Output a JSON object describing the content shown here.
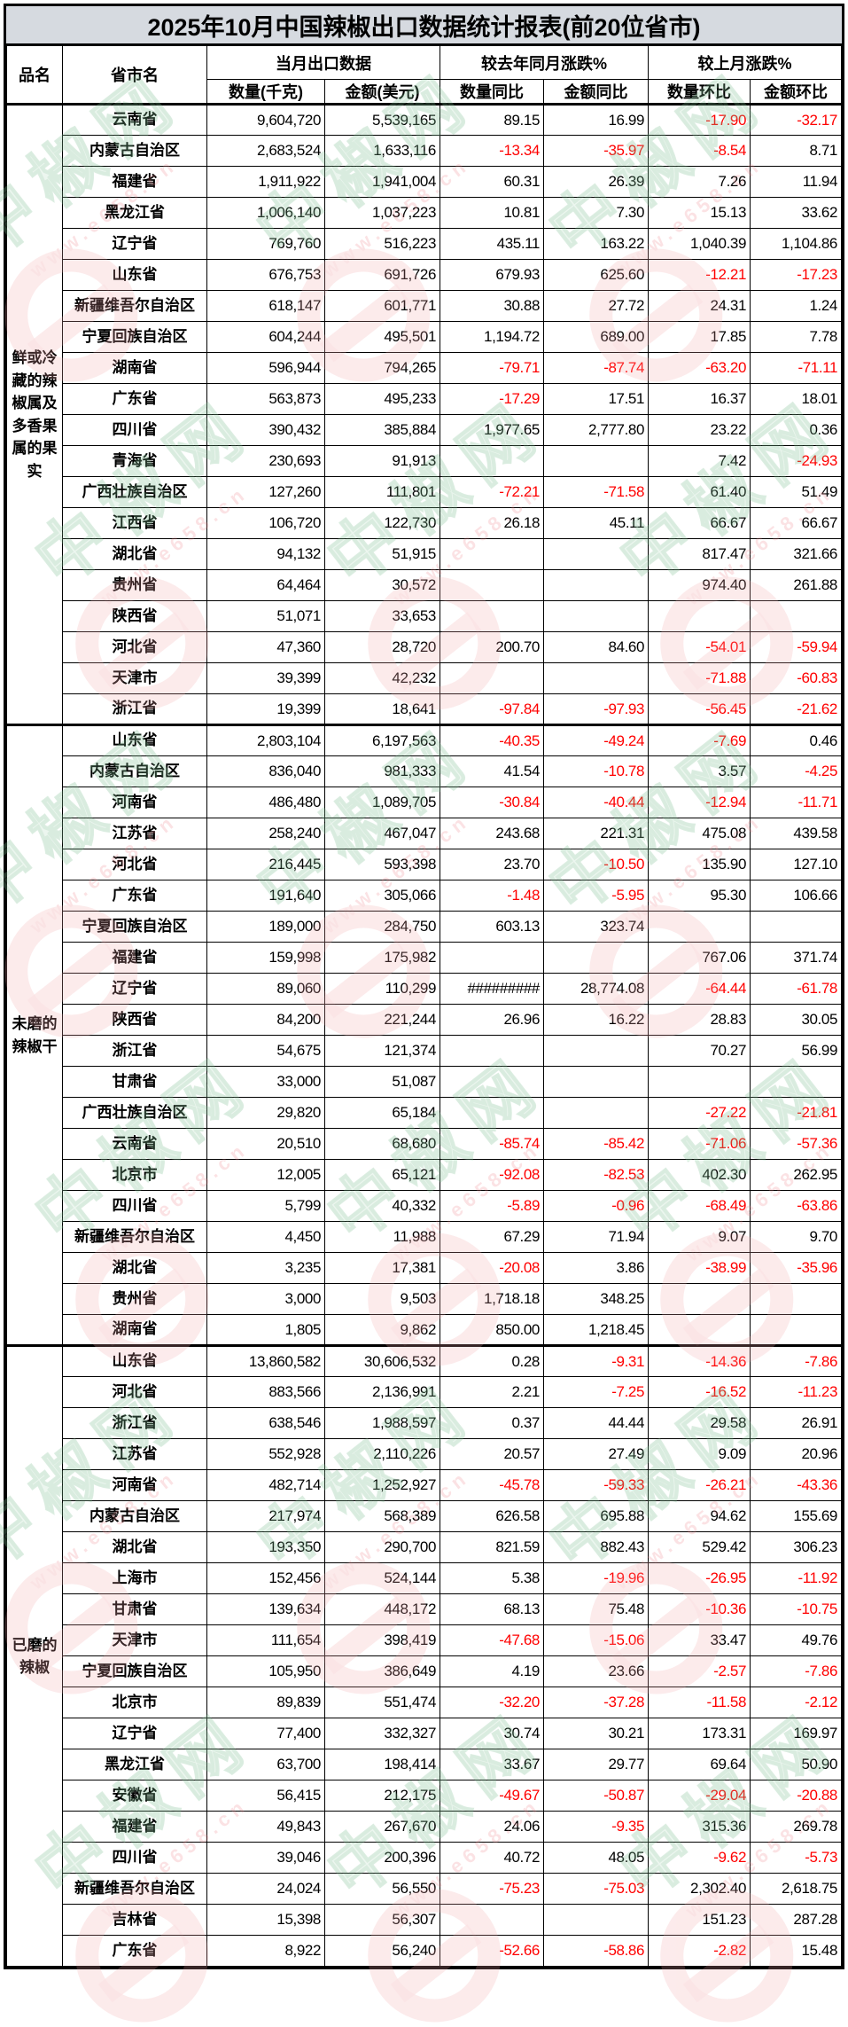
{
  "title": "2025年10月中国辣椒出口数据统计报表(前20位省市)",
  "header": {
    "col_product": "品名",
    "col_province": "省市名",
    "group_current": "当月出口数据",
    "group_yoy": "较去年同月涨跌%",
    "group_mom": "较上月涨跌%",
    "sub_qty": "数量(千克)",
    "sub_amount": "金额(美元)",
    "sub_qty_yoy": "数量同比",
    "sub_amount_yoy": "金额同比",
    "sub_qty_mom": "数量环比",
    "sub_amount_mom": "金额环比"
  },
  "colors": {
    "negative_value": "#FF0000",
    "positive_value": "#000000",
    "title_bg": "#D6DAE0",
    "grid": "#000000"
  },
  "watermark": {
    "brand": "中椒网",
    "url": "www.e658.cn"
  },
  "sections": [
    {
      "product": "鲜或冷藏的辣椒属及多香果属的果实",
      "rows": [
        {
          "province": "云南省",
          "qty": "9,604,720",
          "amount": "5,539,165",
          "qty_yoy": "89.15",
          "amount_yoy": "16.99",
          "qty_mom": "-17.90",
          "amount_mom": "-32.17"
        },
        {
          "province": "内蒙古自治区",
          "qty": "2,683,524",
          "amount": "1,633,116",
          "qty_yoy": "-13.34",
          "amount_yoy": "-35.97",
          "qty_mom": "-8.54",
          "amount_mom": "8.71"
        },
        {
          "province": "福建省",
          "qty": "1,911,922",
          "amount": "1,941,004",
          "qty_yoy": "60.31",
          "amount_yoy": "26.39",
          "qty_mom": "7.26",
          "amount_mom": "11.94"
        },
        {
          "province": "黑龙江省",
          "qty": "1,006,140",
          "amount": "1,037,223",
          "qty_yoy": "10.81",
          "amount_yoy": "7.30",
          "qty_mom": "15.13",
          "amount_mom": "33.62"
        },
        {
          "province": "辽宁省",
          "qty": "769,760",
          "amount": "516,223",
          "qty_yoy": "435.11",
          "amount_yoy": "163.22",
          "qty_mom": "1,040.39",
          "amount_mom": "1,104.86"
        },
        {
          "province": "山东省",
          "qty": "676,753",
          "amount": "691,726",
          "qty_yoy": "679.93",
          "amount_yoy": "625.60",
          "qty_mom": "-12.21",
          "amount_mom": "-17.23"
        },
        {
          "province": "新疆维吾尔自治区",
          "qty": "618,147",
          "amount": "601,771",
          "qty_yoy": "30.88",
          "amount_yoy": "27.72",
          "qty_mom": "24.31",
          "amount_mom": "1.24"
        },
        {
          "province": "宁夏回族自治区",
          "qty": "604,244",
          "amount": "495,501",
          "qty_yoy": "1,194.72",
          "amount_yoy": "689.00",
          "qty_mom": "17.85",
          "amount_mom": "7.78"
        },
        {
          "province": "湖南省",
          "qty": "596,944",
          "amount": "794,265",
          "qty_yoy": "-79.71",
          "amount_yoy": "-87.74",
          "qty_mom": "-63.20",
          "amount_mom": "-71.11"
        },
        {
          "province": "广东省",
          "qty": "563,873",
          "amount": "495,233",
          "qty_yoy": "-17.29",
          "amount_yoy": "17.51",
          "qty_mom": "16.37",
          "amount_mom": "18.01"
        },
        {
          "province": "四川省",
          "qty": "390,432",
          "amount": "385,884",
          "qty_yoy": "1,977.65",
          "amount_yoy": "2,777.80",
          "qty_mom": "23.22",
          "amount_mom": "0.36"
        },
        {
          "province": "青海省",
          "qty": "230,693",
          "amount": "91,913",
          "qty_yoy": "",
          "amount_yoy": "",
          "qty_mom": "7.42",
          "amount_mom": "-24.93"
        },
        {
          "province": "广西壮族自治区",
          "qty": "127,260",
          "amount": "111,801",
          "qty_yoy": "-72.21",
          "amount_yoy": "-71.58",
          "qty_mom": "61.40",
          "amount_mom": "51.49"
        },
        {
          "province": "江西省",
          "qty": "106,720",
          "amount": "122,730",
          "qty_yoy": "26.18",
          "amount_yoy": "45.11",
          "qty_mom": "66.67",
          "amount_mom": "66.67"
        },
        {
          "province": "湖北省",
          "qty": "94,132",
          "amount": "51,915",
          "qty_yoy": "",
          "amount_yoy": "",
          "qty_mom": "817.47",
          "amount_mom": "321.66"
        },
        {
          "province": "贵州省",
          "qty": "64,464",
          "amount": "30,572",
          "qty_yoy": "",
          "amount_yoy": "",
          "qty_mom": "974.40",
          "amount_mom": "261.88"
        },
        {
          "province": "陕西省",
          "qty": "51,071",
          "amount": "33,653",
          "qty_yoy": "",
          "amount_yoy": "",
          "qty_mom": "",
          "amount_mom": ""
        },
        {
          "province": "河北省",
          "qty": "47,360",
          "amount": "28,720",
          "qty_yoy": "200.70",
          "amount_yoy": "84.60",
          "qty_mom": "-54.01",
          "amount_mom": "-59.94"
        },
        {
          "province": "天津市",
          "qty": "39,399",
          "amount": "42,232",
          "qty_yoy": "",
          "amount_yoy": "",
          "qty_mom": "-71.88",
          "amount_mom": "-60.83"
        },
        {
          "province": "浙江省",
          "qty": "19,399",
          "amount": "18,641",
          "qty_yoy": "-97.84",
          "amount_yoy": "-97.93",
          "qty_mom": "-56.45",
          "amount_mom": "-21.62"
        }
      ]
    },
    {
      "product": "未磨的辣椒干",
      "rows": [
        {
          "province": "山东省",
          "qty": "2,803,104",
          "amount": "6,197,563",
          "qty_yoy": "-40.35",
          "amount_yoy": "-49.24",
          "qty_mom": "-7.69",
          "amount_mom": "0.46"
        },
        {
          "province": "内蒙古自治区",
          "qty": "836,040",
          "amount": "981,333",
          "qty_yoy": "41.54",
          "amount_yoy": "-10.78",
          "qty_mom": "3.57",
          "amount_mom": "-4.25"
        },
        {
          "province": "河南省",
          "qty": "486,480",
          "amount": "1,089,705",
          "qty_yoy": "-30.84",
          "amount_yoy": "-40.44",
          "qty_mom": "-12.94",
          "amount_mom": "-11.71"
        },
        {
          "province": "江苏省",
          "qty": "258,240",
          "amount": "467,047",
          "qty_yoy": "243.68",
          "amount_yoy": "221.31",
          "qty_mom": "475.08",
          "amount_mom": "439.58"
        },
        {
          "province": "河北省",
          "qty": "216,445",
          "amount": "593,398",
          "qty_yoy": "23.70",
          "amount_yoy": "-10.50",
          "qty_mom": "135.90",
          "amount_mom": "127.10"
        },
        {
          "province": "广东省",
          "qty": "191,640",
          "amount": "305,066",
          "qty_yoy": "-1.48",
          "amount_yoy": "-5.95",
          "qty_mom": "95.30",
          "amount_mom": "106.66"
        },
        {
          "province": "宁夏回族自治区",
          "qty": "189,000",
          "amount": "284,750",
          "qty_yoy": "603.13",
          "amount_yoy": "323.74",
          "qty_mom": "",
          "amount_mom": ""
        },
        {
          "province": "福建省",
          "qty": "159,998",
          "amount": "175,982",
          "qty_yoy": "",
          "amount_yoy": "",
          "qty_mom": "767.06",
          "amount_mom": "371.74"
        },
        {
          "province": "辽宁省",
          "qty": "89,060",
          "amount": "110,299",
          "qty_yoy": "#########",
          "amount_yoy": "28,774.08",
          "qty_mom": "-64.44",
          "amount_mom": "-61.78"
        },
        {
          "province": "陕西省",
          "qty": "84,200",
          "amount": "221,244",
          "qty_yoy": "26.96",
          "amount_yoy": "16.22",
          "qty_mom": "28.83",
          "amount_mom": "30.05"
        },
        {
          "province": "浙江省",
          "qty": "54,675",
          "amount": "121,374",
          "qty_yoy": "",
          "amount_yoy": "",
          "qty_mom": "70.27",
          "amount_mom": "56.99"
        },
        {
          "province": "甘肃省",
          "qty": "33,000",
          "amount": "51,087",
          "qty_yoy": "",
          "amount_yoy": "",
          "qty_mom": "",
          "amount_mom": ""
        },
        {
          "province": "广西壮族自治区",
          "qty": "29,820",
          "amount": "65,184",
          "qty_yoy": "",
          "amount_yoy": "",
          "qty_mom": "-27.22",
          "amount_mom": "-21.81"
        },
        {
          "province": "云南省",
          "qty": "20,510",
          "amount": "68,680",
          "qty_yoy": "-85.74",
          "amount_yoy": "-85.42",
          "qty_mom": "-71.06",
          "amount_mom": "-57.36"
        },
        {
          "province": "北京市",
          "qty": "12,005",
          "amount": "65,121",
          "qty_yoy": "-92.08",
          "amount_yoy": "-82.53",
          "qty_mom": "402.30",
          "amount_mom": "262.95"
        },
        {
          "province": "四川省",
          "qty": "5,799",
          "amount": "40,332",
          "qty_yoy": "-5.89",
          "amount_yoy": "-0.96",
          "qty_mom": "-68.49",
          "amount_mom": "-63.86"
        },
        {
          "province": "新疆维吾尔自治区",
          "qty": "4,450",
          "amount": "11,988",
          "qty_yoy": "67.29",
          "amount_yoy": "71.94",
          "qty_mom": "9.07",
          "amount_mom": "9.70"
        },
        {
          "province": "湖北省",
          "qty": "3,235",
          "amount": "17,381",
          "qty_yoy": "-20.08",
          "amount_yoy": "3.86",
          "qty_mom": "-38.99",
          "amount_mom": "-35.96"
        },
        {
          "province": "贵州省",
          "qty": "3,000",
          "amount": "9,503",
          "qty_yoy": "1,718.18",
          "amount_yoy": "348.25",
          "qty_mom": "",
          "amount_mom": ""
        },
        {
          "province": "湖南省",
          "qty": "1,805",
          "amount": "9,862",
          "qty_yoy": "850.00",
          "amount_yoy": "1,218.45",
          "qty_mom": "",
          "amount_mom": ""
        }
      ]
    },
    {
      "product": "已磨的辣椒",
      "rows": [
        {
          "province": "山东省",
          "qty": "13,860,582",
          "amount": "30,606,532",
          "qty_yoy": "0.28",
          "amount_yoy": "-9.31",
          "qty_mom": "-14.36",
          "amount_mom": "-7.86"
        },
        {
          "province": "河北省",
          "qty": "883,566",
          "amount": "2,136,991",
          "qty_yoy": "2.21",
          "amount_yoy": "-7.25",
          "qty_mom": "-16.52",
          "amount_mom": "-11.23"
        },
        {
          "province": "浙江省",
          "qty": "638,546",
          "amount": "1,988,597",
          "qty_yoy": "0.37",
          "amount_yoy": "44.44",
          "qty_mom": "29.58",
          "amount_mom": "26.91"
        },
        {
          "province": "江苏省",
          "qty": "552,928",
          "amount": "2,110,226",
          "qty_yoy": "20.57",
          "amount_yoy": "27.49",
          "qty_mom": "9.09",
          "amount_mom": "20.96"
        },
        {
          "province": "河南省",
          "qty": "482,714",
          "amount": "1,252,927",
          "qty_yoy": "-45.78",
          "amount_yoy": "-59.33",
          "qty_mom": "-26.21",
          "amount_mom": "-43.36"
        },
        {
          "province": "内蒙古自治区",
          "qty": "217,974",
          "amount": "568,389",
          "qty_yoy": "626.58",
          "amount_yoy": "695.88",
          "qty_mom": "94.62",
          "amount_mom": "155.69"
        },
        {
          "province": "湖北省",
          "qty": "193,350",
          "amount": "290,700",
          "qty_yoy": "821.59",
          "amount_yoy": "882.43",
          "qty_mom": "529.42",
          "amount_mom": "306.23"
        },
        {
          "province": "上海市",
          "qty": "152,456",
          "amount": "524,144",
          "qty_yoy": "5.38",
          "amount_yoy": "-19.96",
          "qty_mom": "-26.95",
          "amount_mom": "-11.92"
        },
        {
          "province": "甘肃省",
          "qty": "139,634",
          "amount": "448,172",
          "qty_yoy": "68.13",
          "amount_yoy": "75.48",
          "qty_mom": "-10.36",
          "amount_mom": "-10.75"
        },
        {
          "province": "天津市",
          "qty": "111,654",
          "amount": "398,419",
          "qty_yoy": "-47.68",
          "amount_yoy": "-15.06",
          "qty_mom": "33.47",
          "amount_mom": "49.76"
        },
        {
          "province": "宁夏回族自治区",
          "qty": "105,950",
          "amount": "386,649",
          "qty_yoy": "4.19",
          "amount_yoy": "23.66",
          "qty_mom": "-2.57",
          "amount_mom": "-7.86"
        },
        {
          "province": "北京市",
          "qty": "89,839",
          "amount": "551,474",
          "qty_yoy": "-32.20",
          "amount_yoy": "-37.28",
          "qty_mom": "-11.58",
          "amount_mom": "-2.12"
        },
        {
          "province": "辽宁省",
          "qty": "77,400",
          "amount": "332,327",
          "qty_yoy": "30.74",
          "amount_yoy": "30.21",
          "qty_mom": "173.31",
          "amount_mom": "169.97"
        },
        {
          "province": "黑龙江省",
          "qty": "63,700",
          "amount": "198,414",
          "qty_yoy": "33.67",
          "amount_yoy": "29.77",
          "qty_mom": "69.64",
          "amount_mom": "50.90"
        },
        {
          "province": "安徽省",
          "qty": "56,415",
          "amount": "212,175",
          "qty_yoy": "-49.67",
          "amount_yoy": "-50.87",
          "qty_mom": "-29.04",
          "amount_mom": "-20.88"
        },
        {
          "province": "福建省",
          "qty": "49,843",
          "amount": "267,670",
          "qty_yoy": "24.06",
          "amount_yoy": "-9.35",
          "qty_mom": "315.36",
          "amount_mom": "269.78"
        },
        {
          "province": "四川省",
          "qty": "39,046",
          "amount": "200,396",
          "qty_yoy": "40.72",
          "amount_yoy": "48.05",
          "qty_mom": "-9.62",
          "amount_mom": "-5.73"
        },
        {
          "province": "新疆维吾尔自治区",
          "qty": "24,024",
          "amount": "56,550",
          "qty_yoy": "-75.23",
          "amount_yoy": "-75.03",
          "qty_mom": "2,302.40",
          "amount_mom": "2,618.75"
        },
        {
          "province": "吉林省",
          "qty": "15,398",
          "amount": "56,307",
          "qty_yoy": "",
          "amount_yoy": "",
          "qty_mom": "151.23",
          "amount_mom": "287.28"
        },
        {
          "province": "广东省",
          "qty": "8,922",
          "amount": "56,240",
          "qty_yoy": "-52.66",
          "amount_yoy": "-58.86",
          "qty_mom": "-2.82",
          "amount_mom": "15.48"
        }
      ]
    }
  ]
}
